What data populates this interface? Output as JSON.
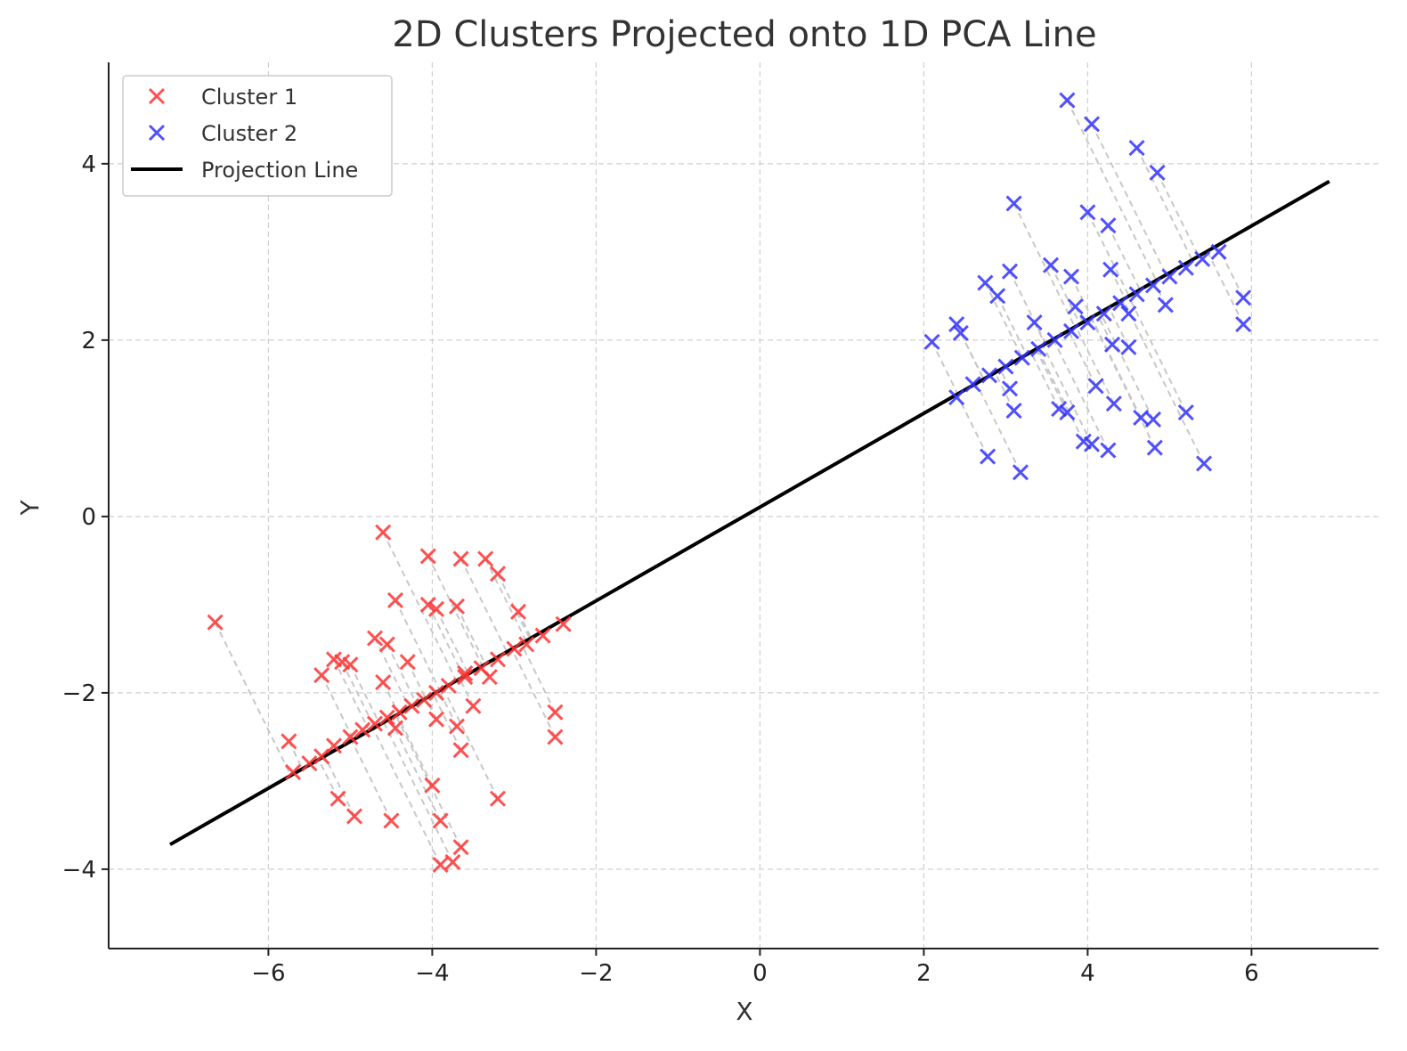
{
  "chart_data": {
    "type": "scatter",
    "title": "2D Clusters Projected onto 1D PCA Line",
    "xlabel": "X",
    "ylabel": "Y",
    "xlim": [
      -7.95,
      7.55
    ],
    "ylim": [
      -4.9,
      5.15
    ],
    "xticks": [
      -6,
      -4,
      -2,
      0,
      2,
      4,
      6
    ],
    "yticks": [
      -4,
      -2,
      0,
      2,
      4
    ],
    "tick_labels_x": [
      "−6",
      "−4",
      "−2",
      "0",
      "2",
      "4",
      "6"
    ],
    "tick_labels_y": [
      "−4",
      "−2",
      "0",
      "2",
      "4"
    ],
    "grid": true,
    "legend_position": "top-left",
    "line": {
      "name": "Projection Line",
      "x": [
        -7.2,
        6.95
      ],
      "y": [
        -3.72,
        3.8
      ],
      "color": "#000000"
    },
    "series": [
      {
        "name": "Cluster 1",
        "color": "#ff3333",
        "marker": "x",
        "points": [
          [
            -6.65,
            -1.2
          ],
          [
            -5.75,
            -2.55
          ],
          [
            -5.35,
            -1.8
          ],
          [
            -5.2,
            -1.62
          ],
          [
            -5.1,
            -1.65
          ],
          [
            -5.0,
            -1.68
          ],
          [
            -5.15,
            -3.2
          ],
          [
            -4.95,
            -3.4
          ],
          [
            -4.6,
            -0.18
          ],
          [
            -4.45,
            -0.95
          ],
          [
            -4.7,
            -1.38
          ],
          [
            -4.55,
            -1.45
          ],
          [
            -4.6,
            -1.88
          ],
          [
            -4.3,
            -1.65
          ],
          [
            -4.45,
            -2.4
          ],
          [
            -4.5,
            -3.45
          ],
          [
            -4.05,
            -0.45
          ],
          [
            -4.05,
            -1.0
          ],
          [
            -3.95,
            -1.05
          ],
          [
            -3.65,
            -0.48
          ],
          [
            -3.35,
            -0.48
          ],
          [
            -3.2,
            -0.65
          ],
          [
            -3.7,
            -1.02
          ],
          [
            -2.95,
            -1.08
          ],
          [
            -3.6,
            -1.78
          ],
          [
            -3.3,
            -1.82
          ],
          [
            -3.5,
            -2.15
          ],
          [
            -3.7,
            -2.38
          ],
          [
            -3.65,
            -2.65
          ],
          [
            -3.95,
            -2.3
          ],
          [
            -4.0,
            -3.05
          ],
          [
            -3.9,
            -3.45
          ],
          [
            -3.9,
            -3.95
          ],
          [
            -3.75,
            -3.92
          ],
          [
            -3.65,
            -3.75
          ],
          [
            -3.2,
            -3.2
          ],
          [
            -2.5,
            -2.22
          ],
          [
            -2.5,
            -2.5
          ],
          [
            -2.4,
            -1.22
          ],
          [
            -5.7,
            -2.9
          ],
          [
            -5.5,
            -2.8
          ],
          [
            -5.35,
            -2.72
          ],
          [
            -5.2,
            -2.6
          ],
          [
            -5.0,
            -2.5
          ],
          [
            -4.85,
            -2.42
          ],
          [
            -4.7,
            -2.35
          ],
          [
            -4.55,
            -2.28
          ],
          [
            -4.4,
            -2.22
          ],
          [
            -4.25,
            -2.15
          ],
          [
            -4.1,
            -2.08
          ],
          [
            -3.95,
            -2.0
          ],
          [
            -3.8,
            -1.92
          ],
          [
            -3.6,
            -1.82
          ],
          [
            -3.4,
            -1.72
          ],
          [
            -3.2,
            -1.62
          ],
          [
            -3.0,
            -1.5
          ],
          [
            -2.85,
            -1.45
          ],
          [
            -2.65,
            -1.35
          ]
        ]
      },
      {
        "name": "Cluster 2",
        "color": "#3333ff",
        "marker": "x",
        "points": [
          [
            2.1,
            1.98
          ],
          [
            2.4,
            2.18
          ],
          [
            2.45,
            2.08
          ],
          [
            2.75,
            2.65
          ],
          [
            2.9,
            2.5
          ],
          [
            3.05,
            2.78
          ],
          [
            3.1,
            3.55
          ],
          [
            2.78,
            0.68
          ],
          [
            3.05,
            1.45
          ],
          [
            3.1,
            1.2
          ],
          [
            3.18,
            0.5
          ],
          [
            3.35,
            2.2
          ],
          [
            3.55,
            2.85
          ],
          [
            3.75,
            4.72
          ],
          [
            3.8,
            2.72
          ],
          [
            3.85,
            2.38
          ],
          [
            3.65,
            1.22
          ],
          [
            3.75,
            1.18
          ],
          [
            3.95,
            0.85
          ],
          [
            4.05,
            0.82
          ],
          [
            4.0,
            3.45
          ],
          [
            4.05,
            4.45
          ],
          [
            4.1,
            1.48
          ],
          [
            4.25,
            3.3
          ],
          [
            4.28,
            2.8
          ],
          [
            4.3,
            1.95
          ],
          [
            4.32,
            1.28
          ],
          [
            4.25,
            0.75
          ],
          [
            4.5,
            1.92
          ],
          [
            4.5,
            2.3
          ],
          [
            4.6,
            4.18
          ],
          [
            4.65,
            1.12
          ],
          [
            4.8,
            1.1
          ],
          [
            4.82,
            0.78
          ],
          [
            4.85,
            3.9
          ],
          [
            4.95,
            2.4
          ],
          [
            5.2,
            1.18
          ],
          [
            5.42,
            0.6
          ],
          [
            5.9,
            2.48
          ],
          [
            5.9,
            2.18
          ],
          [
            2.4,
            1.35
          ],
          [
            2.6,
            1.5
          ],
          [
            2.8,
            1.6
          ],
          [
            3.0,
            1.7
          ],
          [
            3.2,
            1.8
          ],
          [
            3.4,
            1.9
          ],
          [
            3.6,
            2.0
          ],
          [
            3.8,
            2.1
          ],
          [
            4.0,
            2.2
          ],
          [
            4.2,
            2.3
          ],
          [
            4.4,
            2.42
          ],
          [
            4.6,
            2.52
          ],
          [
            4.8,
            2.62
          ],
          [
            5.0,
            2.72
          ],
          [
            5.2,
            2.82
          ],
          [
            5.4,
            2.92
          ],
          [
            5.6,
            3.0
          ]
        ]
      }
    ]
  }
}
